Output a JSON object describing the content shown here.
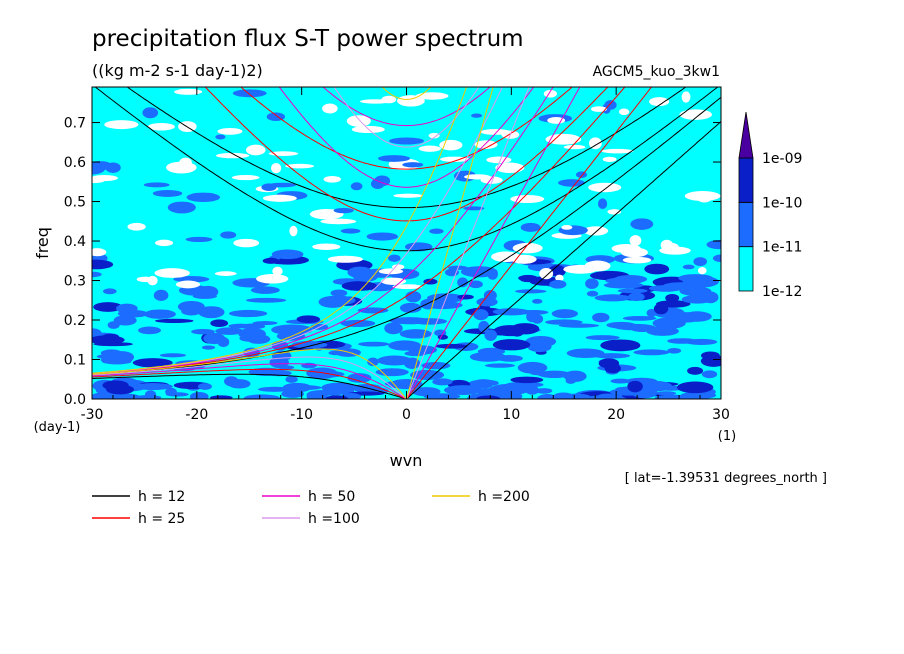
{
  "chart_data": {
    "type": "heatmap",
    "title": "precipitation flux S-T power spectrum",
    "subtitle": "((kg m-2 s-1 day-1)2)",
    "run_label": "AGCM5_kuo_3kw1",
    "xlabel": "wvn",
    "ylabel": "freq",
    "x_unit": "(1)",
    "y_unit": "(day-1)",
    "xlim": [
      -30,
      30
    ],
    "ylim": [
      0,
      0.79
    ],
    "xticks": [
      -30,
      -20,
      -10,
      0,
      10,
      20,
      30
    ],
    "xtick_labels": [
      "-30",
      "-20",
      "-10",
      "0",
      "10",
      "20",
      "30"
    ],
    "yticks": [
      0.0,
      0.1,
      0.2,
      0.3,
      0.4,
      0.5,
      0.6,
      0.7
    ],
    "ytick_labels": [
      "0.0",
      "0.1",
      "0.2",
      "0.3",
      "0.4",
      "0.5",
      "0.6",
      "0.7"
    ],
    "annotation": "[ lat=-1.39531 degrees_north ]",
    "colorbar": {
      "levels": [
        1e-12,
        1e-11,
        1e-10,
        1e-09
      ],
      "level_labels": [
        "1e-12",
        "1e-11",
        "1e-10",
        "1e-09"
      ],
      "colors": [
        "#00ffff",
        "#1c6cff",
        "#0a1fc8",
        "#4a00a0"
      ],
      "below_color": "#ffffff",
      "extend": "max"
    },
    "dispersion_curves": [
      {
        "label": "h = 12",
        "h": 12,
        "color": "#000000"
      },
      {
        "label": "h = 25",
        "h": 25,
        "color": "#ff0000"
      },
      {
        "label": "h = 50",
        "h": 50,
        "color": "#ee00cc"
      },
      {
        "label": "h =100",
        "h": 100,
        "color": "#dd99ee"
      },
      {
        "label": "h =200",
        "h": 200,
        "color": "#eecc00"
      }
    ],
    "grid": false,
    "legend_placement": "bottom-left"
  }
}
